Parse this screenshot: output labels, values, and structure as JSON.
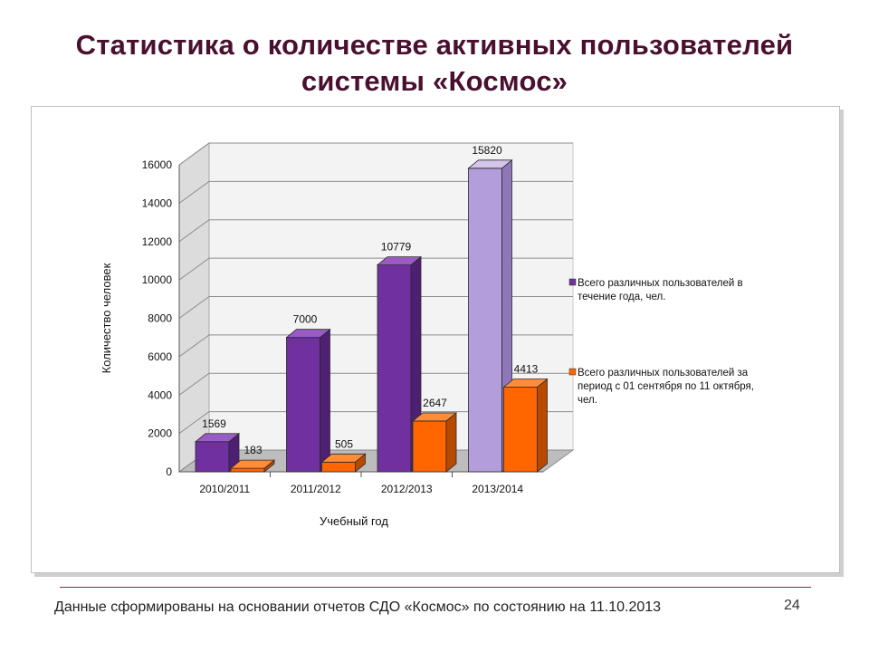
{
  "slide": {
    "title_line1": "Статистика о количестве активных пользователей",
    "title_line2": "системы «Космос»",
    "footer": "Данные сформированы на основании отчетов СДО «Космос» по состоянию на 11.10.2013",
    "page_number": "24"
  },
  "colors": {
    "series1_main": "#7030a0",
    "series1_side": "#4e1f72",
    "series1_top": "#9a5cc4",
    "series1_last_main": "#b39ddb",
    "series1_last_side": "#8f77b9",
    "series1_last_top": "#d4c5ec",
    "series2_main": "#ff6600",
    "series2_side": "#b84a00",
    "series2_top": "#ff8c3a",
    "wall": "#f3f3f3",
    "floor": "#bdbdbd",
    "grid": "#8c8c8c"
  },
  "chart_data": {
    "type": "bar",
    "categories": [
      "2010/2011",
      "2011/2012",
      "2012/2013",
      "2013/2014"
    ],
    "series": [
      {
        "name": "Всего различных пользователей в течение года, чел.",
        "legend_lines": [
          "Всего различных пользователей в",
          "течение года, чел."
        ],
        "values": [
          1569,
          7000,
          10779,
          15820
        ]
      },
      {
        "name": "Всего различных пользователей за период с 01 сентября по 11 октября, чел.",
        "legend_lines": [
          "Всего различных пользователей за",
          "период с 01 сентября по 11 октября,",
          "чел."
        ],
        "values": [
          183,
          505,
          2647,
          4413
        ]
      }
    ],
    "xlabel": "Учебный год",
    "ylabel": "Количество человек",
    "ylim": [
      0,
      16000
    ],
    "yticks": [
      0,
      2000,
      4000,
      6000,
      8000,
      10000,
      12000,
      14000,
      16000
    ],
    "grid": true,
    "legend_position": "right",
    "style": "3d-column"
  }
}
